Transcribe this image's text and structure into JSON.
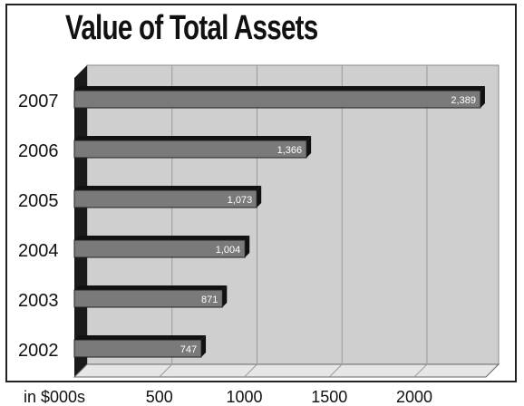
{
  "chart_data": {
    "type": "bar",
    "orientation": "horizontal",
    "title": "Value of Total Assets",
    "xlabel": "in $000s",
    "ylabel": "",
    "categories": [
      "2007",
      "2006",
      "2005",
      "2004",
      "2003",
      "2002"
    ],
    "values": [
      2389,
      1366,
      1073,
      1004,
      871,
      747
    ],
    "value_labels": [
      "2,389",
      "1,366",
      "1,073",
      "1,004",
      "871",
      "747"
    ],
    "x_ticks": [
      "500",
      "1000",
      "1500",
      "2000"
    ],
    "x_tick_values": [
      500,
      1000,
      1500,
      2000
    ],
    "xlim": [
      0,
      2400
    ],
    "grid": true,
    "style": "3d",
    "colors": {
      "bar": "#7a7a7a",
      "bar_top": "#111111",
      "plot_back": "#cfcfcf",
      "floor": "#e6e6e6",
      "wall": "#1a1a1a"
    }
  }
}
